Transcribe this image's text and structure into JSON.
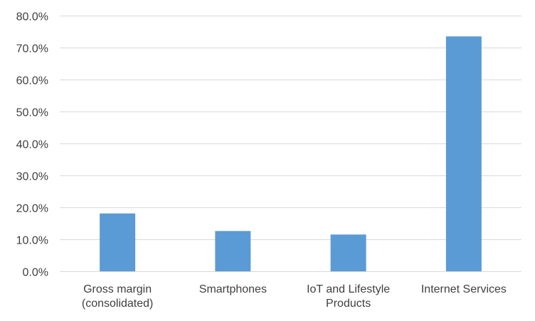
{
  "chart_data": {
    "type": "bar",
    "categories": [
      [
        "Gross margin",
        "(consolidated)"
      ],
      [
        "Smartphones"
      ],
      [
        "IoT and Lifestyle",
        "Products"
      ],
      [
        "Internet Services"
      ]
    ],
    "values": [
      18.1,
      12.6,
      11.5,
      73.5
    ],
    "ylim": [
      0,
      80
    ],
    "yticks": [
      0,
      10,
      20,
      30,
      40,
      50,
      60,
      70,
      80
    ],
    "ytick_labels": [
      "0.0%",
      "10.0%",
      "20.0%",
      "30.0%",
      "40.0%",
      "50.0%",
      "60.0%",
      "70.0%",
      "80.0%"
    ],
    "bar_color": "#5b9bd5",
    "grid_color": "#d9d9d9",
    "text_color": "#404040",
    "grid": true,
    "legend": "none",
    "title": "",
    "xlabel": "",
    "ylabel": ""
  }
}
